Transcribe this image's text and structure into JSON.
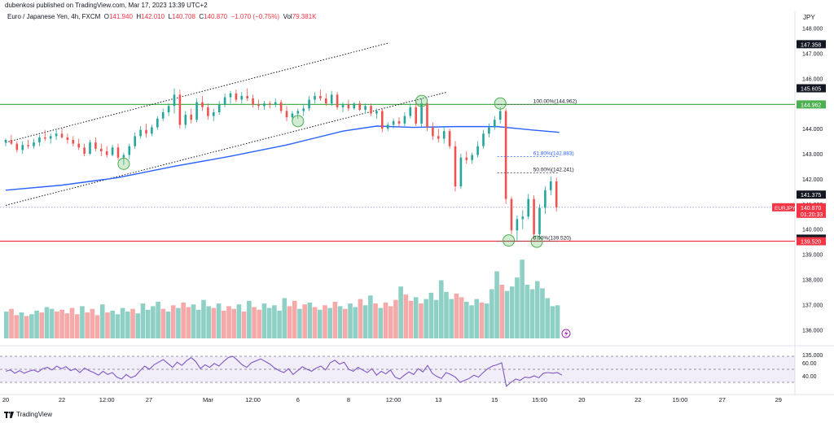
{
  "header": {
    "published": "dubenkosi published on TradingView.com, Mar 17, 2023 13:39 UTC+2"
  },
  "ohlc": {
    "symbol": "Euro / Japanese Yen, 4h, FXCM",
    "o_label": "O",
    "o": "141.940",
    "h_label": "H",
    "h": "142.010",
    "l_label": "L",
    "l": "140.708",
    "c_label": "C",
    "c": "140.870",
    "change": "−1.070 (−0.75%)",
    "vol_label": "Vol",
    "vol": "79.381K"
  },
  "colors": {
    "up": "#26a69a",
    "down": "#ef5350",
    "up_volume": "#8fd0c6",
    "down_volume": "#f5a9a8",
    "ma": "#2962ff",
    "rsi": "#7e57c2",
    "hline_top": "#4caf50",
    "hline_bottom": "#f23645",
    "fib": "#2962ff"
  },
  "chart_data": {
    "type": "candlestick",
    "symbol": "EURJPY",
    "interval": "4h",
    "price_axis": {
      "unit": "JPY",
      "range": [
        134.8,
        148.4
      ],
      "ticks": [
        "148.000",
        "147.000",
        "146.000",
        "145.000",
        "144.000",
        "143.000",
        "142.000",
        "141.000",
        "140.000",
        "139.000",
        "138.000",
        "137.000",
        "136.000",
        "135.000"
      ]
    },
    "time_axis": {
      "labels": [
        {
          "t": 0,
          "label": "20"
        },
        {
          "t": 20,
          "label": "22"
        },
        {
          "t": 36,
          "label": "12:00"
        },
        {
          "t": 51,
          "label": "27"
        },
        {
          "t": 72,
          "label": "Mar"
        },
        {
          "t": 88,
          "label": "12:00"
        },
        {
          "t": 104,
          "label": "6"
        },
        {
          "t": 122,
          "label": "8"
        },
        {
          "t": 138,
          "label": "12:00"
        },
        {
          "t": 154,
          "label": "13"
        },
        {
          "t": 174,
          "label": "15"
        },
        {
          "t": 190,
          "label": "15:00"
        },
        {
          "t": 205,
          "label": "20"
        },
        {
          "t": 225,
          "label": "22"
        },
        {
          "t": 240,
          "label": "15:00"
        },
        {
          "t": 255,
          "label": "27"
        },
        {
          "t": 275,
          "label": "29"
        }
      ]
    },
    "price_badges": [
      {
        "label": "147.358",
        "price": 147.358,
        "style": "dark"
      },
      {
        "label": "145.605",
        "price": 145.605,
        "style": "dark"
      },
      {
        "label": "144.962",
        "price": 144.962,
        "style": "green"
      },
      {
        "label": "141.375",
        "price": 141.375,
        "style": "dark"
      },
      {
        "label": "140.870",
        "price": 140.87,
        "style": "red",
        "extra": "01:20:33",
        "symbol": "EURJPY"
      },
      {
        "label": "139.622",
        "price": 139.622,
        "style": "dark"
      },
      {
        "label": "139.520",
        "price": 139.52,
        "style": "red"
      }
    ],
    "horizontal_lines": [
      {
        "price": 144.962,
        "color": "#4caf50"
      },
      {
        "price": 139.52,
        "color": "#f23645"
      },
      {
        "price": 140.87,
        "color": "#9598c7",
        "style": "dotted"
      }
    ],
    "fibonacci": {
      "t_start": 175,
      "t_end": 197,
      "levels": [
        {
          "label": "100.00%(144.962)",
          "price": 144.962
        },
        {
          "label": "61.80%(142.883)",
          "price": 142.883
        },
        {
          "label": "50.00%(142.241)",
          "price": 142.241
        },
        {
          "label": "0.00%(139.520)",
          "price": 139.52
        }
      ]
    },
    "trendlines": [
      {
        "t1": 0,
        "p1": 143.45,
        "t2": 136,
        "p2": 147.4
      },
      {
        "t1": 0,
        "p1": 140.95,
        "t2": 157,
        "p2": 145.45
      }
    ],
    "markers": [
      {
        "t": 42,
        "price": 142.6
      },
      {
        "t": 104,
        "price": 144.3
      },
      {
        "t": 148,
        "price": 145.1
      },
      {
        "t": 176,
        "price": 145.0
      },
      {
        "t": 179,
        "price": 139.55
      },
      {
        "t": 189,
        "price": 139.5
      }
    ],
    "moving_average": [
      {
        "t": 0,
        "p": 141.55
      },
      {
        "t": 20,
        "p": 141.75
      },
      {
        "t": 40,
        "p": 142.05
      },
      {
        "t": 60,
        "p": 142.5
      },
      {
        "t": 80,
        "p": 142.9
      },
      {
        "t": 100,
        "p": 143.35
      },
      {
        "t": 120,
        "p": 143.9
      },
      {
        "t": 132,
        "p": 144.1
      },
      {
        "t": 145,
        "p": 144.05
      },
      {
        "t": 160,
        "p": 144.08
      },
      {
        "t": 175,
        "p": 144.08
      },
      {
        "t": 187,
        "p": 143.95
      },
      {
        "t": 197,
        "p": 143.85
      }
    ],
    "candles": [
      {
        "t": 0,
        "o": 143.45,
        "h": 143.6,
        "l": 143.3,
        "c": 143.55
      },
      {
        "t": 2,
        "o": 143.55,
        "h": 143.75,
        "l": 143.35,
        "c": 143.4
      },
      {
        "t": 4,
        "o": 143.4,
        "h": 143.5,
        "l": 143.05,
        "c": 143.15
      },
      {
        "t": 6,
        "o": 143.15,
        "h": 143.5,
        "l": 143.0,
        "c": 143.35
      },
      {
        "t": 8,
        "o": 143.35,
        "h": 143.55,
        "l": 143.2,
        "c": 143.3
      },
      {
        "t": 10,
        "o": 143.3,
        "h": 143.6,
        "l": 143.2,
        "c": 143.45
      },
      {
        "t": 12,
        "o": 143.45,
        "h": 143.75,
        "l": 143.3,
        "c": 143.65
      },
      {
        "t": 14,
        "o": 143.65,
        "h": 143.95,
        "l": 143.5,
        "c": 143.6
      },
      {
        "t": 16,
        "o": 143.6,
        "h": 143.8,
        "l": 143.4,
        "c": 143.7
      },
      {
        "t": 18,
        "o": 143.7,
        "h": 144.0,
        "l": 143.55,
        "c": 143.8
      },
      {
        "t": 20,
        "o": 143.8,
        "h": 144.0,
        "l": 143.6,
        "c": 143.65
      },
      {
        "t": 22,
        "o": 143.65,
        "h": 143.8,
        "l": 143.4,
        "c": 143.55
      },
      {
        "t": 24,
        "o": 143.55,
        "h": 143.7,
        "l": 143.3,
        "c": 143.4
      },
      {
        "t": 26,
        "o": 143.4,
        "h": 143.6,
        "l": 143.15,
        "c": 143.25
      },
      {
        "t": 28,
        "o": 143.25,
        "h": 143.4,
        "l": 142.9,
        "c": 143.0
      },
      {
        "t": 30,
        "o": 143.0,
        "h": 143.55,
        "l": 142.95,
        "c": 143.45
      },
      {
        "t": 32,
        "o": 143.45,
        "h": 143.65,
        "l": 143.1,
        "c": 143.2
      },
      {
        "t": 34,
        "o": 143.2,
        "h": 143.4,
        "l": 142.9,
        "c": 143.1
      },
      {
        "t": 36,
        "o": 143.1,
        "h": 143.3,
        "l": 142.85,
        "c": 142.95
      },
      {
        "t": 38,
        "o": 142.95,
        "h": 143.35,
        "l": 142.9,
        "c": 143.25
      },
      {
        "t": 40,
        "o": 143.25,
        "h": 143.4,
        "l": 142.75,
        "c": 142.85
      },
      {
        "t": 42,
        "o": 142.85,
        "h": 143.05,
        "l": 142.55,
        "c": 142.95
      },
      {
        "t": 44,
        "o": 142.95,
        "h": 143.4,
        "l": 142.8,
        "c": 143.3
      },
      {
        "t": 46,
        "o": 143.3,
        "h": 143.85,
        "l": 143.2,
        "c": 143.7
      },
      {
        "t": 48,
        "o": 143.7,
        "h": 144.1,
        "l": 143.6,
        "c": 143.95
      },
      {
        "t": 50,
        "o": 143.95,
        "h": 144.2,
        "l": 143.65,
        "c": 143.8
      },
      {
        "t": 52,
        "o": 143.8,
        "h": 144.15,
        "l": 143.7,
        "c": 144.05
      },
      {
        "t": 54,
        "o": 144.05,
        "h": 144.5,
        "l": 143.95,
        "c": 144.4
      },
      {
        "t": 56,
        "o": 144.4,
        "h": 144.8,
        "l": 144.3,
        "c": 144.65
      },
      {
        "t": 58,
        "o": 144.65,
        "h": 145.0,
        "l": 144.5,
        "c": 144.9
      },
      {
        "t": 60,
        "o": 144.9,
        "h": 145.6,
        "l": 144.6,
        "c": 145.35
      },
      {
        "t": 62,
        "o": 145.35,
        "h": 145.55,
        "l": 144.0,
        "c": 144.15
      },
      {
        "t": 64,
        "o": 144.15,
        "h": 144.7,
        "l": 144.0,
        "c": 144.55
      },
      {
        "t": 66,
        "o": 144.55,
        "h": 144.8,
        "l": 144.2,
        "c": 144.35
      },
      {
        "t": 68,
        "o": 144.35,
        "h": 145.2,
        "l": 144.25,
        "c": 145.05
      },
      {
        "t": 70,
        "o": 145.05,
        "h": 145.3,
        "l": 144.7,
        "c": 144.85
      },
      {
        "t": 72,
        "o": 144.85,
        "h": 145.0,
        "l": 144.35,
        "c": 144.5
      },
      {
        "t": 74,
        "o": 144.5,
        "h": 144.8,
        "l": 144.3,
        "c": 144.65
      },
      {
        "t": 76,
        "o": 144.65,
        "h": 145.1,
        "l": 144.55,
        "c": 144.95
      },
      {
        "t": 78,
        "o": 144.95,
        "h": 145.4,
        "l": 144.85,
        "c": 145.25
      },
      {
        "t": 80,
        "o": 145.25,
        "h": 145.5,
        "l": 145.0,
        "c": 145.4
      },
      {
        "t": 82,
        "o": 145.4,
        "h": 145.55,
        "l": 145.05,
        "c": 145.15
      },
      {
        "t": 84,
        "o": 145.15,
        "h": 145.45,
        "l": 145.0,
        "c": 145.3
      },
      {
        "t": 86,
        "o": 145.3,
        "h": 145.6,
        "l": 145.1,
        "c": 145.2
      },
      {
        "t": 88,
        "o": 145.2,
        "h": 145.35,
        "l": 144.85,
        "c": 144.95
      },
      {
        "t": 90,
        "o": 144.95,
        "h": 145.15,
        "l": 144.75,
        "c": 144.9
      },
      {
        "t": 92,
        "o": 144.9,
        "h": 145.1,
        "l": 144.75,
        "c": 145.0
      },
      {
        "t": 94,
        "o": 145.0,
        "h": 145.1,
        "l": 144.8,
        "c": 144.95
      },
      {
        "t": 96,
        "o": 144.95,
        "h": 145.2,
        "l": 144.85,
        "c": 145.05
      },
      {
        "t": 98,
        "o": 145.05,
        "h": 145.15,
        "l": 144.6,
        "c": 144.7
      },
      {
        "t": 100,
        "o": 144.7,
        "h": 144.9,
        "l": 144.3,
        "c": 144.45
      },
      {
        "t": 102,
        "o": 144.45,
        "h": 144.7,
        "l": 144.3,
        "c": 144.6
      },
      {
        "t": 104,
        "o": 144.6,
        "h": 144.8,
        "l": 144.4,
        "c": 144.7
      },
      {
        "t": 106,
        "o": 144.7,
        "h": 144.95,
        "l": 144.5,
        "c": 144.8
      },
      {
        "t": 108,
        "o": 144.8,
        "h": 145.3,
        "l": 144.7,
        "c": 145.15
      },
      {
        "t": 110,
        "o": 145.15,
        "h": 145.45,
        "l": 145.0,
        "c": 145.3
      },
      {
        "t": 112,
        "o": 145.3,
        "h": 145.55,
        "l": 145.1,
        "c": 145.2
      },
      {
        "t": 114,
        "o": 145.2,
        "h": 145.4,
        "l": 144.9,
        "c": 145.0
      },
      {
        "t": 116,
        "o": 145.0,
        "h": 145.5,
        "l": 144.9,
        "c": 145.35
      },
      {
        "t": 118,
        "o": 145.35,
        "h": 145.45,
        "l": 144.75,
        "c": 144.85
      },
      {
        "t": 120,
        "o": 144.85,
        "h": 145.05,
        "l": 144.65,
        "c": 144.95
      },
      {
        "t": 122,
        "o": 144.95,
        "h": 145.15,
        "l": 144.7,
        "c": 144.8
      },
      {
        "t": 124,
        "o": 144.8,
        "h": 145.05,
        "l": 144.75,
        "c": 145.0
      },
      {
        "t": 126,
        "o": 145.0,
        "h": 145.1,
        "l": 144.7,
        "c": 144.75
      },
      {
        "t": 128,
        "o": 144.75,
        "h": 145.0,
        "l": 144.6,
        "c": 144.9
      },
      {
        "t": 130,
        "o": 144.9,
        "h": 145.0,
        "l": 144.5,
        "c": 144.6
      },
      {
        "t": 132,
        "o": 144.6,
        "h": 144.8,
        "l": 144.4,
        "c": 144.7
      },
      {
        "t": 134,
        "o": 144.7,
        "h": 144.8,
        "l": 143.85,
        "c": 144.0
      },
      {
        "t": 136,
        "o": 144.0,
        "h": 144.25,
        "l": 143.9,
        "c": 144.15
      },
      {
        "t": 138,
        "o": 144.15,
        "h": 144.4,
        "l": 144.0,
        "c": 144.3
      },
      {
        "t": 140,
        "o": 144.3,
        "h": 144.45,
        "l": 144.05,
        "c": 144.2
      },
      {
        "t": 142,
        "o": 144.2,
        "h": 144.65,
        "l": 144.1,
        "c": 144.5
      },
      {
        "t": 144,
        "o": 144.5,
        "h": 145.0,
        "l": 144.4,
        "c": 144.85
      },
      {
        "t": 146,
        "o": 144.85,
        "h": 145.1,
        "l": 144.1,
        "c": 144.2
      },
      {
        "t": 148,
        "o": 144.2,
        "h": 145.2,
        "l": 144.05,
        "c": 145.0
      },
      {
        "t": 150,
        "o": 145.0,
        "h": 145.1,
        "l": 143.9,
        "c": 144.05
      },
      {
        "t": 152,
        "o": 144.05,
        "h": 144.25,
        "l": 143.55,
        "c": 143.7
      },
      {
        "t": 154,
        "o": 143.7,
        "h": 144.0,
        "l": 143.45,
        "c": 143.6
      },
      {
        "t": 156,
        "o": 143.6,
        "h": 144.1,
        "l": 143.4,
        "c": 143.9
      },
      {
        "t": 158,
        "o": 143.9,
        "h": 144.0,
        "l": 143.2,
        "c": 143.3
      },
      {
        "t": 160,
        "o": 143.3,
        "h": 143.5,
        "l": 141.5,
        "c": 141.7
      },
      {
        "t": 162,
        "o": 141.7,
        "h": 143.0,
        "l": 141.6,
        "c": 142.85
      },
      {
        "t": 164,
        "o": 142.85,
        "h": 143.1,
        "l": 142.6,
        "c": 142.75
      },
      {
        "t": 166,
        "o": 142.75,
        "h": 143.05,
        "l": 142.6,
        "c": 142.95
      },
      {
        "t": 168,
        "o": 142.95,
        "h": 143.5,
        "l": 142.85,
        "c": 143.3
      },
      {
        "t": 170,
        "o": 143.3,
        "h": 143.95,
        "l": 143.2,
        "c": 143.8
      },
      {
        "t": 172,
        "o": 143.8,
        "h": 144.2,
        "l": 143.65,
        "c": 144.05
      },
      {
        "t": 174,
        "o": 144.05,
        "h": 144.5,
        "l": 143.95,
        "c": 144.35
      },
      {
        "t": 176,
        "o": 144.35,
        "h": 144.85,
        "l": 144.2,
        "c": 144.7
      },
      {
        "t": 178,
        "o": 144.7,
        "h": 144.8,
        "l": 141.0,
        "c": 141.2
      },
      {
        "t": 180,
        "o": 141.2,
        "h": 141.3,
        "l": 139.8,
        "c": 139.95
      },
      {
        "t": 182,
        "o": 139.95,
        "h": 140.55,
        "l": 139.55,
        "c": 140.4
      },
      {
        "t": 184,
        "o": 140.4,
        "h": 140.75,
        "l": 140.0,
        "c": 140.5
      },
      {
        "t": 186,
        "o": 140.5,
        "h": 141.4,
        "l": 140.4,
        "c": 141.2
      },
      {
        "t": 188,
        "o": 141.2,
        "h": 141.35,
        "l": 139.6,
        "c": 139.8
      },
      {
        "t": 190,
        "o": 139.8,
        "h": 141.0,
        "l": 139.6,
        "c": 140.85
      },
      {
        "t": 192,
        "o": 140.85,
        "h": 141.7,
        "l": 140.6,
        "c": 141.55
      },
      {
        "t": 194,
        "o": 141.55,
        "h": 142.1,
        "l": 141.35,
        "c": 141.9
      },
      {
        "t": 196,
        "o": 141.9,
        "h": 142.05,
        "l": 140.7,
        "c": 140.87
      }
    ],
    "volume_axis": {
      "ticks": [
        "138.000",
        "137.000",
        "136.000",
        "135.000"
      ]
    },
    "volume": [
      3,
      3.3,
      2.6,
      2.9,
      2.5,
      2.7,
      3.1,
      2.9,
      3.5,
      3.3,
      3.0,
      3.2,
      2.8,
      3.4,
      2.7,
      3.6,
      2.9,
      3.3,
      2.6,
      3.8,
      2.9,
      3.1,
      2.7,
      3.4,
      3.0,
      3.3,
      2.8,
      3.9,
      3.2,
      3.6,
      4.1,
      3.3,
      3.0,
      3.7,
      3.4,
      4.0,
      3.5,
      3.8,
      3.2,
      4.3,
      3.6,
      3.4,
      3.9,
      3.1,
      3.6,
      3.3,
      3.8,
      3.0,
      4.2,
      3.5,
      3.2,
      3.9,
      3.4,
      3.7,
      3.1,
      4.5,
      3.6,
      4.2,
      3.3,
      3.8,
      4.0,
      3.5,
      3.2,
      3.7,
      3.4,
      4.1,
      3.6,
      3.3,
      3.9,
      3.5,
      4.4,
      3.7,
      4.8,
      3.9,
      3.4,
      4.0,
      3.6,
      4.3,
      5.8,
      4.9,
      4.2,
      4.6,
      3.9,
      4.4,
      5.1,
      4.3,
      6.5,
      5.2,
      4.4,
      5.0,
      4.6,
      4.1,
      3.7,
      4.4,
      4.0,
      3.9,
      5.5,
      7.5,
      6.0,
      5.3,
      5.8,
      6.8,
      8.8,
      6.0,
      5.5,
      6.4,
      5.6,
      4.5,
      3.6,
      3.7
    ],
    "rsi": {
      "ticks": [
        "60.00",
        "40.00"
      ],
      "levels": [
        70,
        50,
        30
      ],
      "values": [
        47,
        49,
        44,
        48,
        44,
        47,
        49,
        46,
        51,
        53,
        49,
        55,
        51,
        54,
        48,
        51,
        45,
        52,
        48,
        45,
        41,
        47,
        42,
        45,
        38,
        35,
        42,
        37,
        40,
        48,
        55,
        50,
        57,
        61,
        65,
        59,
        53,
        61,
        56,
        63,
        68,
        62,
        51,
        57,
        53,
        59,
        55,
        62,
        68,
        70,
        64,
        57,
        53,
        60,
        63,
        66,
        62,
        58,
        52,
        48,
        45,
        51,
        42,
        48,
        54,
        50,
        47,
        52,
        55,
        49,
        60,
        64,
        58,
        61,
        50,
        47,
        53,
        49,
        45,
        51,
        41,
        47,
        43,
        49,
        38,
        35,
        41,
        46,
        42,
        51,
        46,
        56,
        44,
        39,
        36,
        45,
        42,
        38,
        30,
        33,
        36,
        41,
        38,
        45,
        51,
        55,
        57,
        60,
        24,
        30,
        35,
        33,
        38,
        37,
        40,
        37,
        44,
        45,
        44,
        45,
        41
      ]
    }
  }
}
